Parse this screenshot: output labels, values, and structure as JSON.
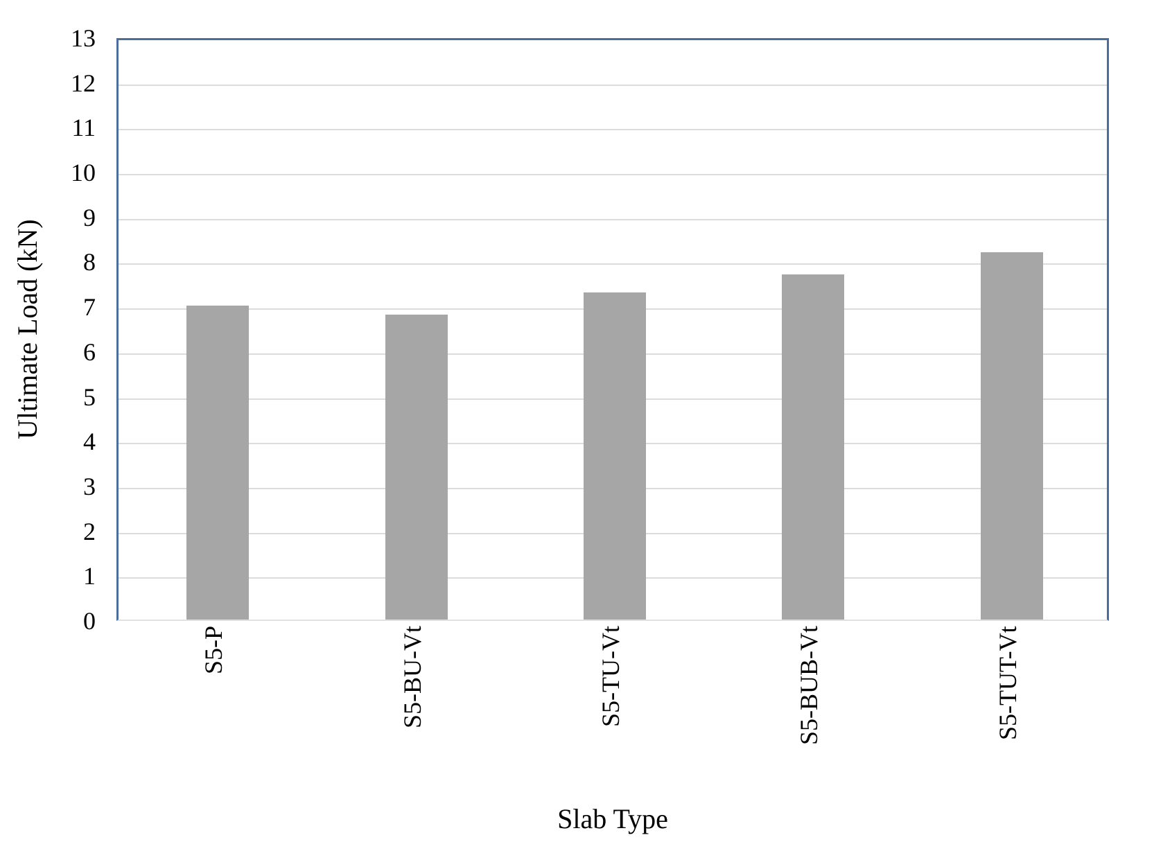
{
  "chart_data": {
    "type": "bar",
    "categories": [
      "S5-P",
      "S5-BU-Vt",
      "S5-TU-Vt",
      "S5-BUB-Vt",
      "S5-TUT-Vt"
    ],
    "values": [
      7.0,
      6.8,
      7.3,
      7.7,
      8.2
    ],
    "title": "",
    "xlabel": "Slab Type",
    "ylabel": "Ultimate Load (kN)",
    "ylim": [
      0,
      13
    ],
    "ytick_step": 1,
    "grid": true,
    "legend_position": "none",
    "bar_color": "#a6a6a6",
    "plot_border_color": "#4a6d9e",
    "axis_baseline_color": "#e0e0e0",
    "gridline_color": "#dcdcdc",
    "text_color": "#000000"
  }
}
